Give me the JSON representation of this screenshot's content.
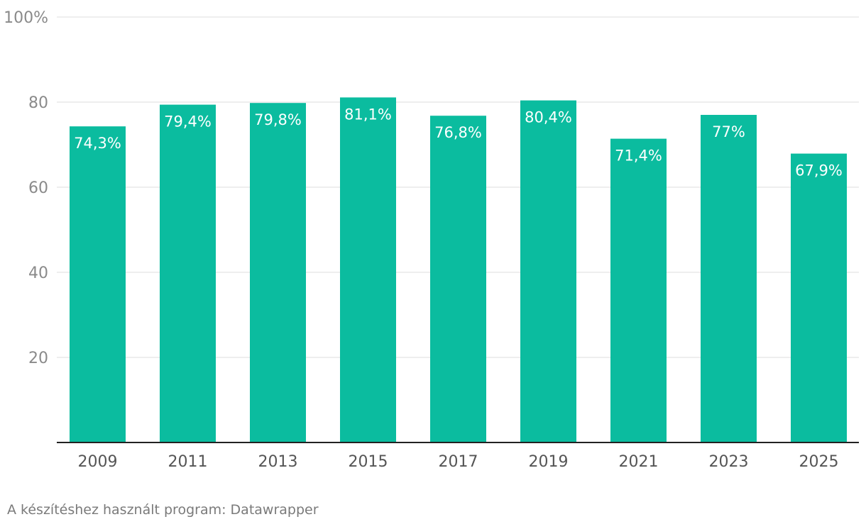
{
  "chart_data": {
    "type": "bar",
    "categories": [
      "2009",
      "2011",
      "2013",
      "2015",
      "2017",
      "2019",
      "2021",
      "2023",
      "2025"
    ],
    "values": [
      74.3,
      79.4,
      79.8,
      81.1,
      76.8,
      80.4,
      71.4,
      77,
      67.9
    ],
    "value_labels": [
      "74,3%",
      "79,4%",
      "79,8%",
      "81,1%",
      "76,8%",
      "80,4%",
      "71,4%",
      "77%",
      "67,9%"
    ],
    "ylim": [
      0,
      100
    ],
    "yticks": [
      20,
      40,
      60,
      80,
      100
    ],
    "ytick_labels": [
      "20",
      "40",
      "60",
      "80",
      "100%"
    ],
    "grid": true,
    "bar_color": "#0bbc9f",
    "title": "",
    "xlabel": "",
    "ylabel": ""
  },
  "footer": {
    "source_text": "A készítéshez használt program: Datawrapper"
  }
}
